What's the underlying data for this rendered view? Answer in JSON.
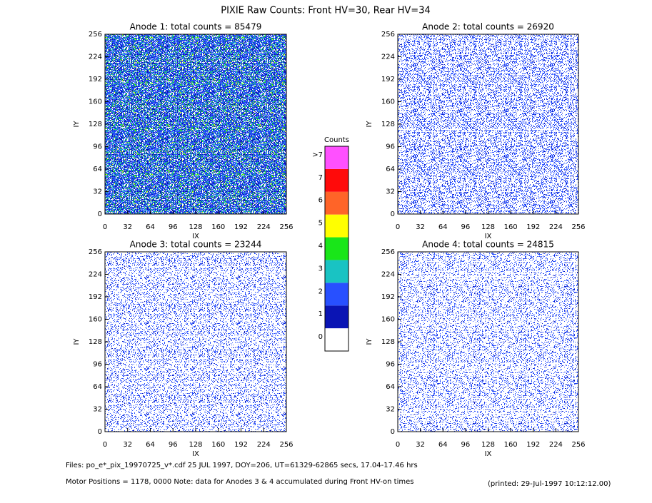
{
  "title": "PIXIE Raw Counts:  Front HV=30, Rear HV=34",
  "chart_data": [
    {
      "type": "heatmap",
      "title": "Anode 1: total counts = 85479",
      "xlabel": "IX",
      "ylabel": "IY",
      "xlim": [
        0,
        256
      ],
      "ylim": [
        0,
        256
      ],
      "xticks": [
        0,
        32,
        64,
        96,
        128,
        160,
        192,
        224,
        256
      ],
      "yticks": [
        0,
        32,
        64,
        96,
        128,
        160,
        192,
        224,
        256
      ]
    },
    {
      "type": "heatmap",
      "title": "Anode 2: total counts = 26920",
      "xlabel": "IX",
      "ylabel": "IY",
      "xlim": [
        0,
        256
      ],
      "ylim": [
        0,
        256
      ],
      "xticks": [
        0,
        32,
        64,
        96,
        128,
        160,
        192,
        224,
        256
      ],
      "yticks": [
        0,
        32,
        64,
        96,
        128,
        160,
        192,
        224,
        256
      ]
    },
    {
      "type": "heatmap",
      "title": "Anode 3: total counts = 23244",
      "xlabel": "IX",
      "ylabel": "IY",
      "xlim": [
        0,
        256
      ],
      "ylim": [
        0,
        256
      ],
      "xticks": [
        0,
        32,
        64,
        96,
        128,
        160,
        192,
        224,
        256
      ],
      "yticks": [
        0,
        32,
        64,
        96,
        128,
        160,
        192,
        224,
        256
      ]
    },
    {
      "type": "heatmap",
      "title": "Anode 4: total counts = 24815",
      "xlabel": "IX",
      "ylabel": "IY",
      "xlim": [
        0,
        256
      ],
      "ylim": [
        0,
        256
      ],
      "xticks": [
        0,
        32,
        64,
        96,
        128,
        160,
        192,
        224,
        256
      ],
      "yticks": [
        0,
        32,
        64,
        96,
        128,
        160,
        192,
        224,
        256
      ]
    }
  ],
  "colorbar": {
    "title": "Counts",
    "levels": [
      {
        "label": "0",
        "color": "#ffffff"
      },
      {
        "label": "1",
        "color": "#0a14b4"
      },
      {
        "label": "2",
        "color": "#2850ff"
      },
      {
        "label": "3",
        "color": "#19c3c3"
      },
      {
        "label": "4",
        "color": "#19e619"
      },
      {
        "label": "5",
        "color": "#ffff00"
      },
      {
        "label": "6",
        "color": "#ff6428"
      },
      {
        "label": "7",
        "color": "#ff0a0a"
      },
      {
        "label": ">7",
        "color": "#ff50ff"
      }
    ]
  },
  "footer": [
    "Files: po_e*_pix_19970725_v*.cdf    25 JUL 1997, DOY=206, UT=61329-62865 secs, 17.04-17.46 hrs",
    "Motor Positions = 1178, 0000   Note: data for Anodes 3 & 4 accumulated during Front HV-on times",
    "(printed: 29-Jul-1997 10:12:12.00)"
  ]
}
